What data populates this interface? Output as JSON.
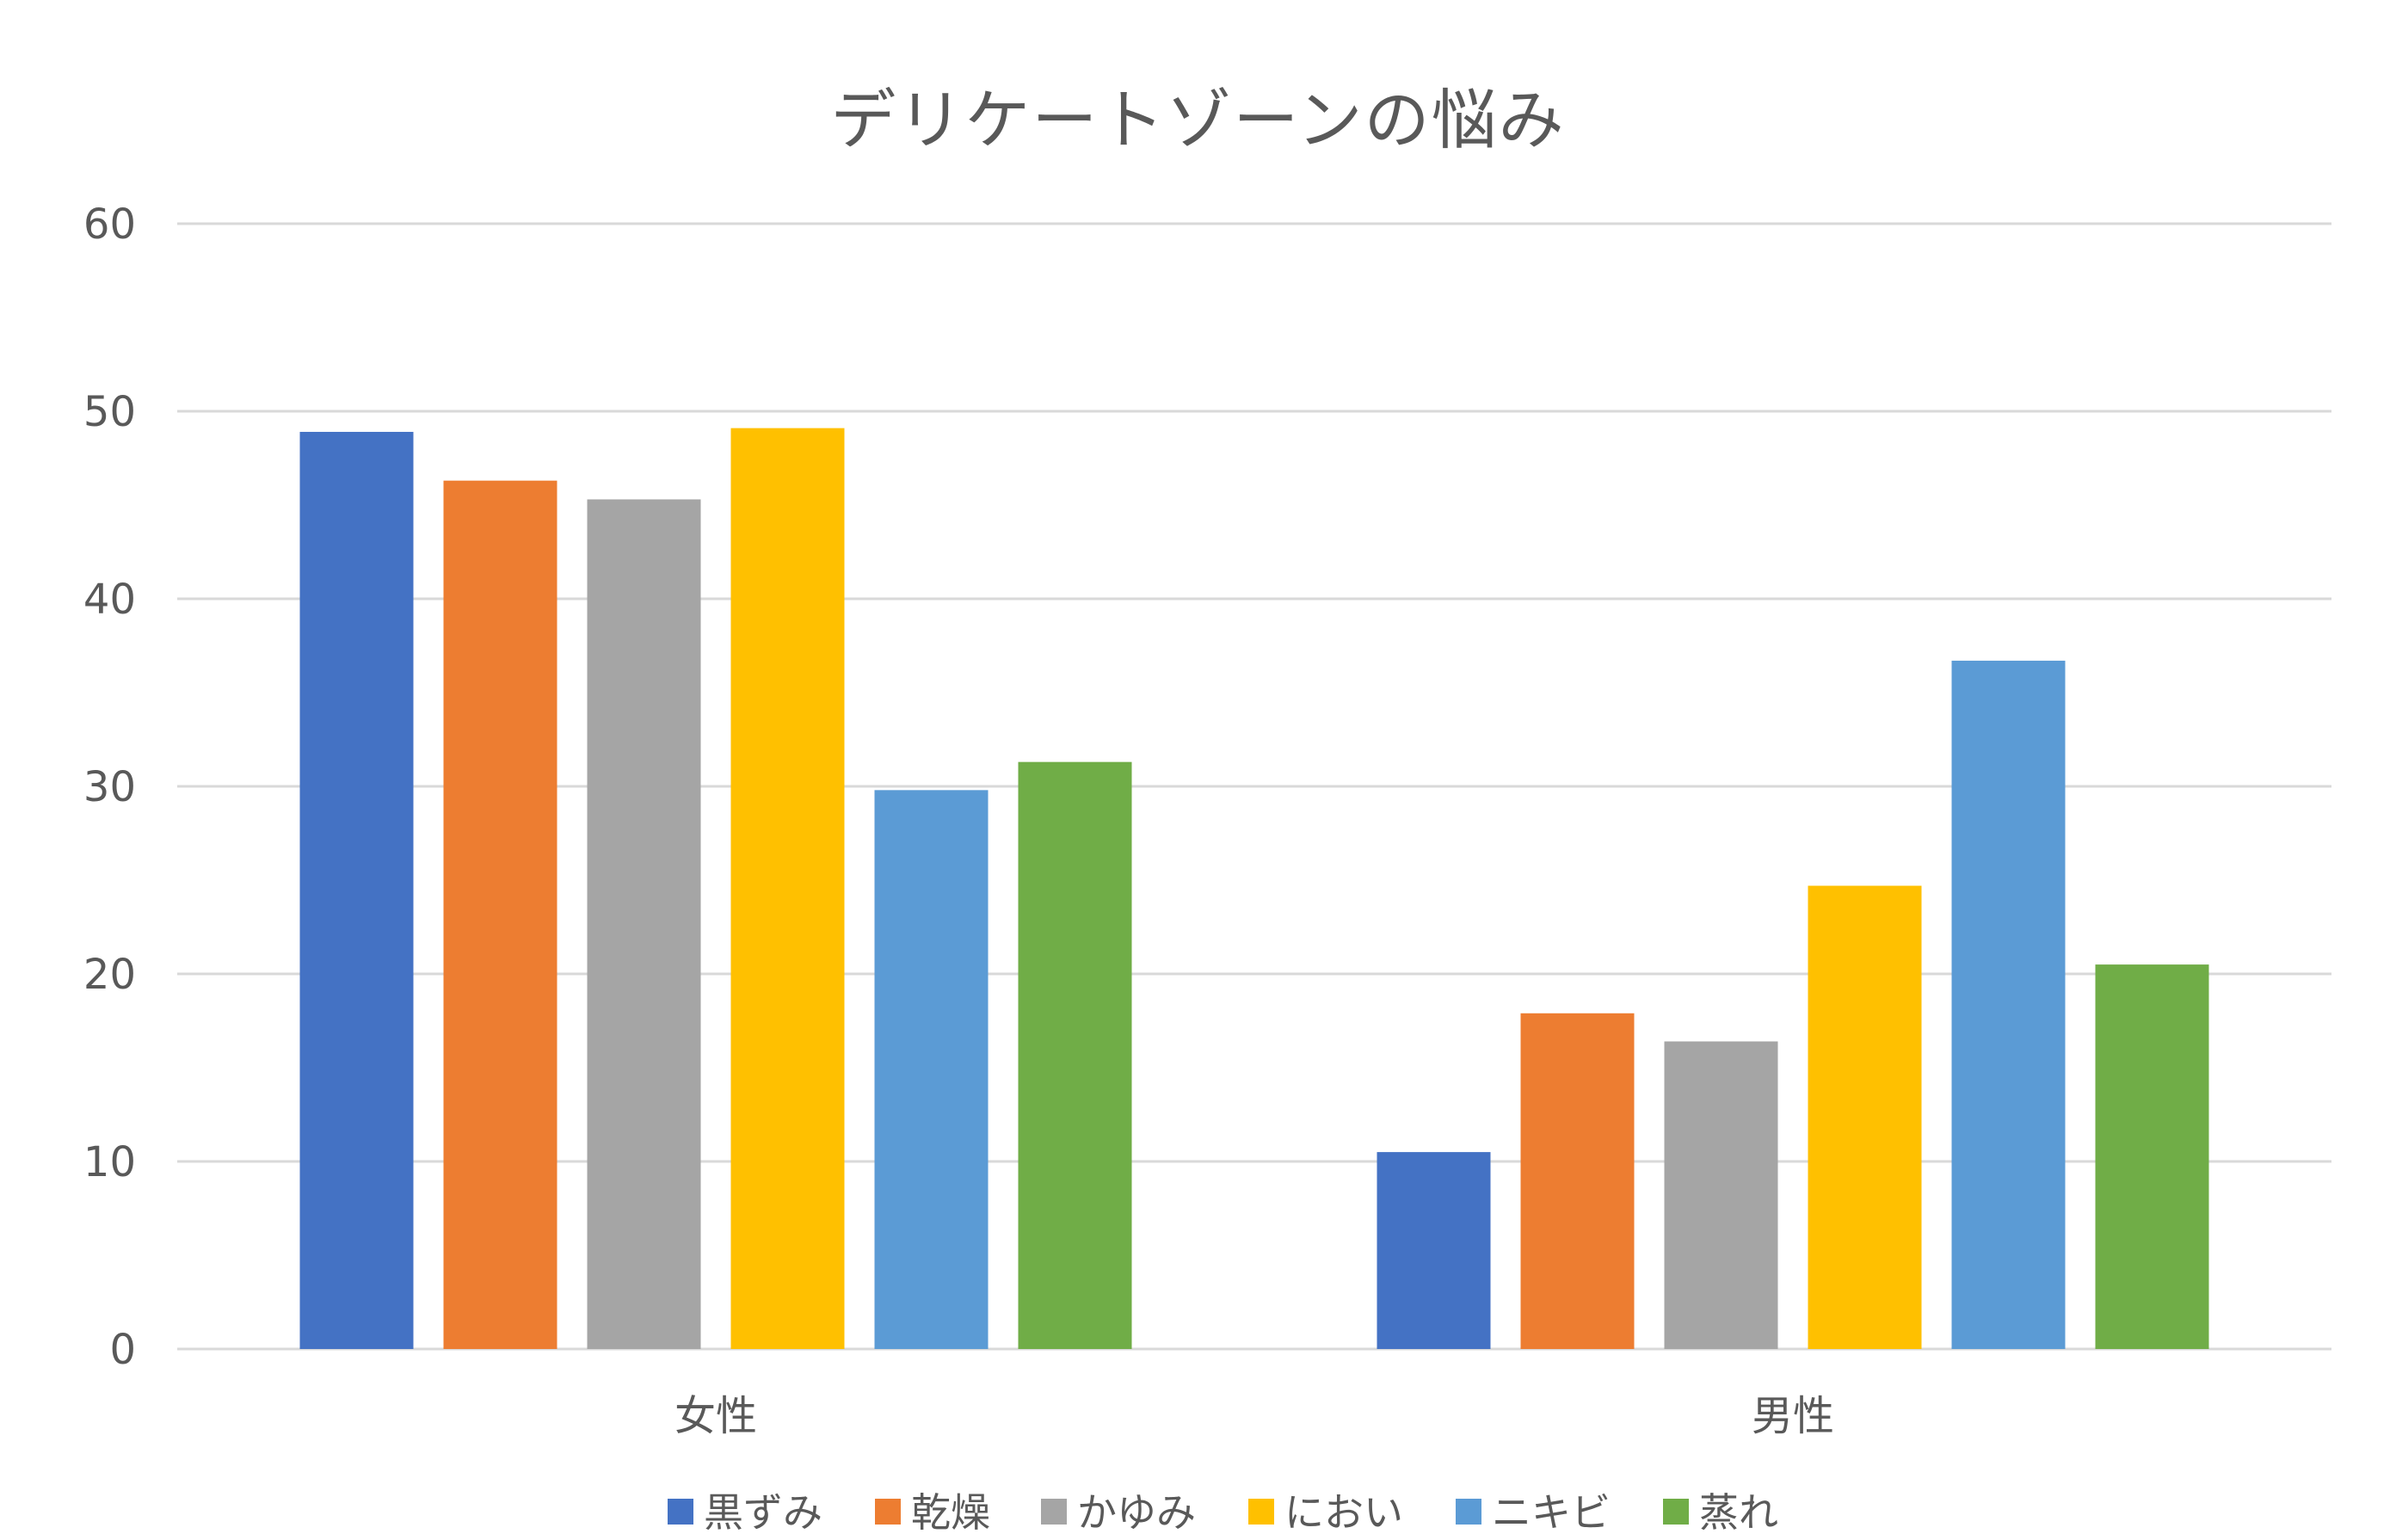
{
  "chart_data": {
    "type": "bar",
    "title": "デリケートゾーンの悩み",
    "xlabel": "",
    "ylabel": "",
    "ylim": [
      0,
      60
    ],
    "yticks": [
      0,
      10,
      20,
      30,
      40,
      50,
      60
    ],
    "grid": true,
    "legend_position": "bottom",
    "categories": [
      "女性",
      "男性"
    ],
    "series": [
      {
        "name": "黒ずみ",
        "color": "#4472C4",
        "values": [
          48.9,
          10.5
        ]
      },
      {
        "name": "乾燥",
        "color": "#ED7D31",
        "values": [
          46.3,
          17.9
        ]
      },
      {
        "name": "かゆみ",
        "color": "#A5A5A5",
        "values": [
          45.3,
          16.4
        ]
      },
      {
        "name": "におい",
        "color": "#FFC000",
        "values": [
          49.1,
          24.7
        ]
      },
      {
        "name": "ニキビ",
        "color": "#5B9BD5",
        "values": [
          29.8,
          36.7
        ]
      },
      {
        "name": "蒸れ",
        "color": "#70AD47",
        "values": [
          31.3,
          20.5
        ]
      }
    ]
  }
}
